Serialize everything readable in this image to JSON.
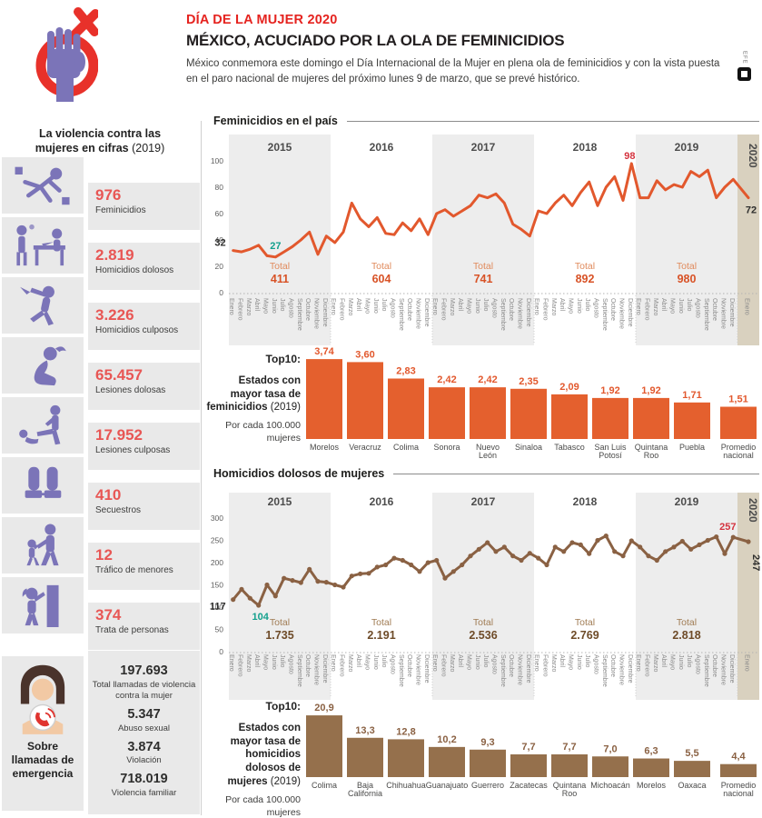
{
  "header": {
    "kicker": "DÍA DE LA MUJER 2020",
    "title": "MÉXICO, ACUCIADO POR LA OLA DE FEMINICIDIOS",
    "intro": "México conmemora este domingo el Día Internacional de la Mujer en plena ola de feminicidios y con la vista puesta en el paro nacional de mujeres del próximo lunes 9 de marzo, que se prevé histórico.",
    "brand": "EFE"
  },
  "sidebar": {
    "title_line1": "La violencia contra las",
    "title_line2_bold": "mujeres en cifras",
    "title_year": "(2019)",
    "stats": [
      {
        "value": "976",
        "label": "Feminicidios",
        "icon": "crime-scene-body-icon"
      },
      {
        "value": "2.819",
        "label": "Homicidios dolosos",
        "icon": "police-report-icon"
      },
      {
        "value": "3.226",
        "label": "Homicidios culposos",
        "icon": "attacker-knife-icon"
      },
      {
        "value": "65.457",
        "label": "Lesiones dolosas",
        "icon": "injured-woman-icon"
      },
      {
        "value": "17.952",
        "label": "Lesiones culposas",
        "icon": "assault-kick-icon"
      },
      {
        "value": "410",
        "label": "Secuestros",
        "icon": "handcuffed-hands-icon"
      },
      {
        "value": "12",
        "label": "Tráfico de menores",
        "icon": "child-trafficking-icon"
      },
      {
        "value": "374",
        "label": "Trata de personas",
        "icon": "woman-door-icon"
      }
    ],
    "emergency": {
      "caption": "Sobre llamadas de emergencia",
      "stats": [
        {
          "value": "197.693",
          "label": "Total llamadas de violencia contra la mujer"
        },
        {
          "value": "5.347",
          "label": "Abuso sexual"
        },
        {
          "value": "3.874",
          "label": "Violación"
        },
        {
          "value": "718.019",
          "label": "Violencia familiar"
        }
      ]
    }
  },
  "chart_data": [
    {
      "type": "line",
      "title": "Feminicidios en el país",
      "line_color": "#e2582d",
      "ylim": [
        0,
        100
      ],
      "yticks": [
        0,
        20,
        40,
        60,
        80,
        100
      ],
      "total_word": "Total",
      "months": [
        "Enero",
        "Febrero",
        "Marzo",
        "Abril",
        "Mayo",
        "Junio",
        "Julio",
        "Agosto",
        "Septiembre",
        "Octubre",
        "Noviembre",
        "Diciembre"
      ],
      "years": [
        {
          "label": "2015",
          "total": "411",
          "values": [
            32,
            31,
            33,
            36,
            28,
            27,
            31,
            35,
            40,
            46,
            29,
            43
          ]
        },
        {
          "label": "2016",
          "total": "604",
          "values": [
            38,
            46,
            68,
            56,
            50,
            57,
            45,
            44,
            53,
            47,
            56,
            44
          ]
        },
        {
          "label": "2017",
          "total": "741",
          "values": [
            60,
            63,
            58,
            62,
            66,
            74,
            72,
            75,
            68,
            52,
            48,
            43
          ]
        },
        {
          "label": "2018",
          "total": "892",
          "values": [
            62,
            60,
            68,
            74,
            66,
            76,
            84,
            66,
            80,
            88,
            70,
            98
          ]
        },
        {
          "label": "2019",
          "total": "980",
          "values": [
            72,
            72,
            85,
            78,
            82,
            80,
            92,
            88,
            93,
            72,
            80,
            86
          ]
        },
        {
          "label": "2020",
          "values": [
            72
          ]
        }
      ],
      "annotations": [
        {
          "text": "32",
          "month_index": 0,
          "color": "#2e2e2d"
        },
        {
          "text": "27",
          "month_index": 5,
          "color": "#13a08d"
        },
        {
          "text": "98",
          "month_index": 47,
          "color": "#d4333f"
        },
        {
          "text": "72",
          "month_index": 60,
          "color": "#2e2e2d"
        }
      ]
    },
    {
      "type": "line",
      "title": "Homicidios dolosos de mujeres",
      "line_color": "#8a6143",
      "ylim": [
        0,
        300
      ],
      "yticks": [
        0,
        50,
        100,
        150,
        200,
        250,
        300
      ],
      "total_word": "Total",
      "months": [
        "Enero",
        "Febrero",
        "Marzo",
        "Abril",
        "Mayo",
        "Junio",
        "Julio",
        "Agosto",
        "Septiembre",
        "Octubre",
        "Noviembre",
        "Diciembre"
      ],
      "years": [
        {
          "label": "2015",
          "total": "1.735",
          "values": [
            117,
            140,
            120,
            104,
            150,
            125,
            165,
            160,
            155,
            185,
            158,
            156
          ]
        },
        {
          "label": "2016",
          "total": "2.191",
          "values": [
            150,
            145,
            170,
            175,
            176,
            190,
            195,
            210,
            205,
            195,
            180,
            200
          ]
        },
        {
          "label": "2017",
          "total": "2.536",
          "values": [
            205,
            165,
            180,
            195,
            215,
            230,
            245,
            225,
            235,
            215,
            205,
            221
          ]
        },
        {
          "label": "2018",
          "total": "2.769",
          "values": [
            210,
            195,
            235,
            225,
            245,
            240,
            220,
            250,
            260,
            225,
            215,
            249
          ]
        },
        {
          "label": "2019",
          "total": "2.818",
          "values": [
            235,
            215,
            205,
            225,
            235,
            248,
            230,
            240,
            250,
            258,
            220,
            257
          ]
        },
        {
          "label": "2020",
          "values": [
            247
          ]
        }
      ],
      "annotations": [
        {
          "text": "117",
          "month_index": 0,
          "color": "#2e2e2d"
        },
        {
          "text": "104",
          "month_index": 3,
          "color": "#13a08d"
        },
        {
          "text": "257",
          "month_index": 59,
          "color": "#d4333f"
        },
        {
          "text": "247",
          "month_index": 60,
          "color": "#2e2e2d"
        }
      ]
    },
    {
      "type": "bar",
      "label_top": "Top10:",
      "label_bold": "Estados con mayor tasa de feminicidios",
      "label_year": "(2019)",
      "label_unit": "Por cada 100.000 mujeres",
      "bar_color": "#e4602e",
      "value_color": "#e2582d",
      "categories": [
        "Morelos",
        "Veracruz",
        "Colima",
        "Sonora",
        "Nuevo León",
        "Sinaloa",
        "Tabasco",
        "San Luis Potosí",
        "Quintana Roo",
        "Puebla",
        "Promedio nacional"
      ],
      "values": [
        3.74,
        3.6,
        2.83,
        2.42,
        2.42,
        2.35,
        2.09,
        1.92,
        1.92,
        1.71,
        1.51
      ],
      "value_labels": [
        "3,74",
        "3,60",
        "2,83",
        "2,42",
        "2,42",
        "2,35",
        "2,09",
        "1,92",
        "1,92",
        "1,71",
        "1,51"
      ]
    },
    {
      "type": "bar",
      "label_top": "Top10:",
      "label_bold": "Estados con mayor tasa de homicidios dolosos de mujeres",
      "label_year": "(2019)",
      "label_unit": "Por cada 100.000 mujeres",
      "bar_color": "#95704c",
      "value_color": "#8a6143",
      "categories": [
        "Colima",
        "Baja California",
        "Chihuahua",
        "Guanajuato",
        "Guerrero",
        "Zacatecas",
        "Quintana Roo",
        "Michoacán",
        "Morelos",
        "Oaxaca",
        "Promedio nacional"
      ],
      "values": [
        20.9,
        13.3,
        12.8,
        10.2,
        9.3,
        7.7,
        7.7,
        7.0,
        6.3,
        5.5,
        4.4
      ],
      "value_labels": [
        "20,9",
        "13,3",
        "12,8",
        "10,2",
        "9,3",
        "7,7",
        "7,7",
        "7,0",
        "6,3",
        "5,5",
        "4,4"
      ]
    }
  ]
}
